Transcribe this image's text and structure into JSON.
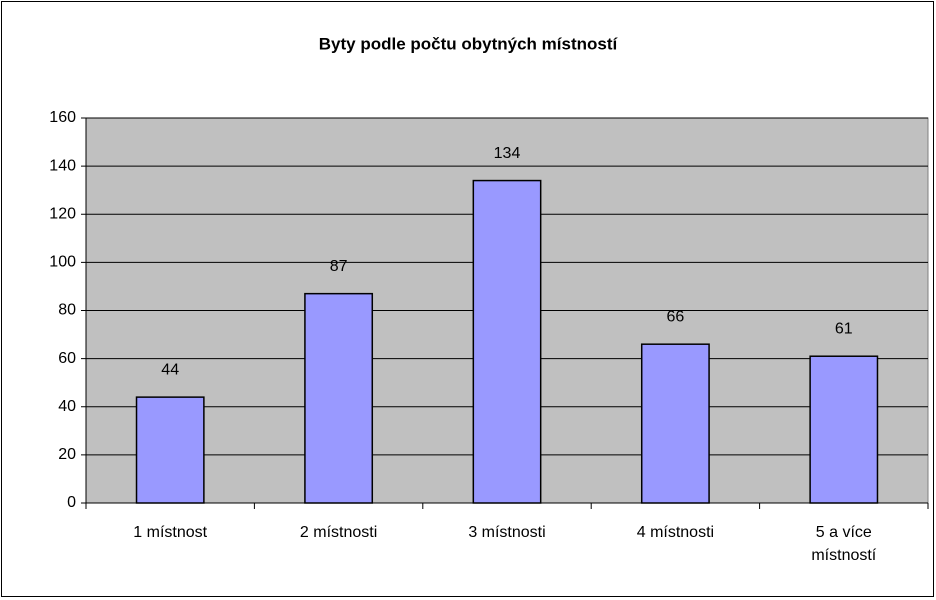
{
  "chart_data": {
    "type": "bar",
    "title": "Byty podle počtu obytných místností",
    "categories": [
      "1 místnost",
      "2 místnosti",
      "3 místnosti",
      "4 místnosti",
      "5 a více místností"
    ],
    "values": [
      44,
      87,
      134,
      66,
      61
    ],
    "color": "#9999ff",
    "ylim": [
      0,
      160
    ],
    "yticks": [
      0,
      20,
      40,
      60,
      80,
      100,
      120,
      140,
      160
    ],
    "grid": true
  }
}
